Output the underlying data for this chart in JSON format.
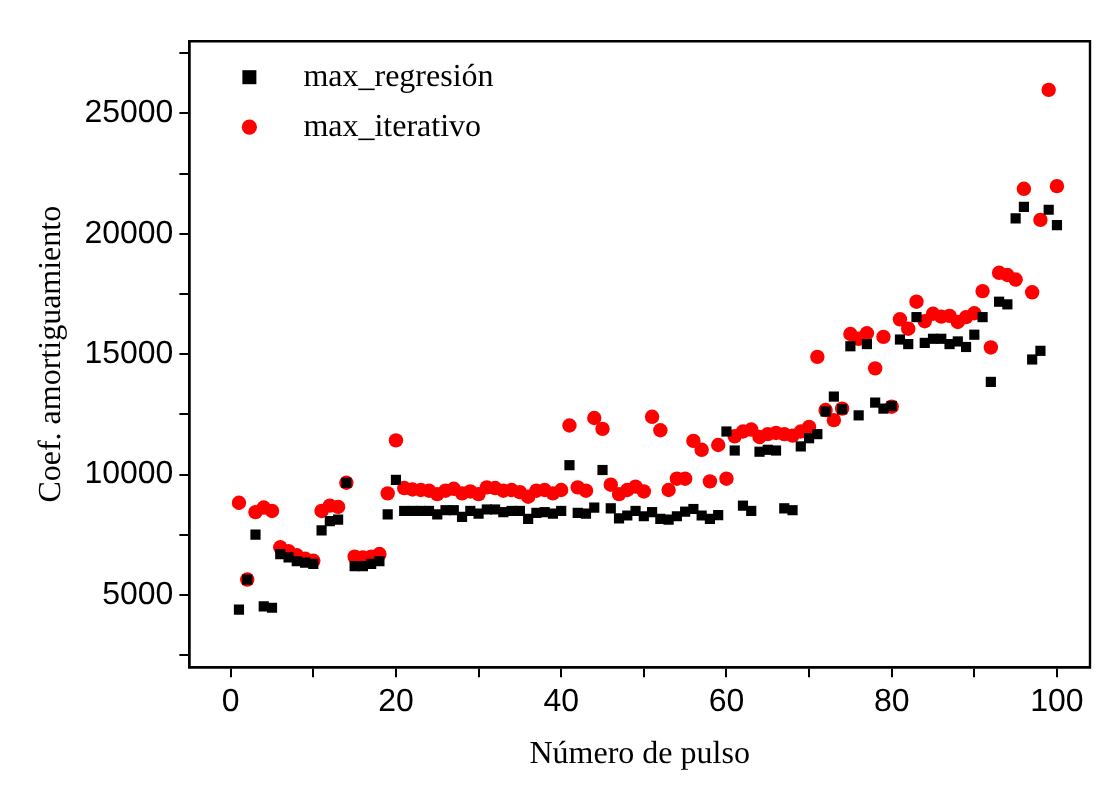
{
  "chart_data": {
    "type": "scatter",
    "xlabel": "Número de pulso",
    "ylabel": "Coef. amortiguamiento",
    "x": [
      1,
      2,
      3,
      4,
      5,
      6,
      7,
      8,
      9,
      10,
      11,
      12,
      13,
      14,
      15,
      16,
      17,
      18,
      19,
      20,
      21,
      22,
      23,
      24,
      25,
      26,
      27,
      28,
      29,
      30,
      31,
      32,
      33,
      34,
      35,
      36,
      37,
      38,
      39,
      40,
      41,
      42,
      43,
      44,
      45,
      46,
      47,
      48,
      49,
      50,
      51,
      52,
      53,
      54,
      55,
      56,
      57,
      58,
      59,
      60,
      61,
      62,
      63,
      64,
      65,
      66,
      67,
      68,
      69,
      70,
      71,
      72,
      73,
      74,
      75,
      76,
      77,
      78,
      79,
      80,
      81,
      82,
      83,
      84,
      85,
      86,
      87,
      88,
      89,
      90,
      91,
      92,
      93,
      94,
      95,
      96,
      97,
      98,
      99,
      100
    ],
    "series": [
      {
        "name": "max_regresión",
        "color": "#000000",
        "marker": "square",
        "values": [
          4390,
          5640,
          7510,
          4530,
          4470,
          6700,
          6560,
          6400,
          6340,
          6290,
          7680,
          8070,
          8130,
          9660,
          6200,
          6200,
          6290,
          6400,
          8350,
          9780,
          8490,
          8490,
          8490,
          8490,
          8350,
          8520,
          8520,
          8240,
          8490,
          8380,
          8550,
          8550,
          8440,
          8490,
          8490,
          8160,
          8410,
          8440,
          8380,
          8490,
          10390,
          8410,
          8380,
          8630,
          10190,
          8600,
          8180,
          8300,
          8490,
          8270,
          8440,
          8160,
          8130,
          8270,
          8460,
          8570,
          8300,
          8160,
          8320,
          11790,
          11000,
          8710,
          8490,
          10950,
          11030,
          11000,
          8600,
          8520,
          11170,
          11510,
          11680,
          12620,
          13240,
          12710,
          15330,
          12460,
          15420,
          12990,
          12740,
          12850,
          15610,
          15420,
          16540,
          15470,
          15640,
          15640,
          15420,
          15530,
          15300,
          15810,
          16540,
          13850,
          17180,
          17070,
          20640,
          21120,
          14780,
          15140,
          21000,
          20360
        ]
      },
      {
        "name": "max_iterativo",
        "color": "#ff0000",
        "marker": "circle",
        "values": [
          8830,
          5640,
          8440,
          8630,
          8490,
          6980,
          6820,
          6650,
          6510,
          6420,
          8490,
          8710,
          8660,
          9660,
          6590,
          6560,
          6590,
          6700,
          9220,
          11420,
          9440,
          9380,
          9360,
          9330,
          9190,
          9330,
          9410,
          9220,
          9300,
          9190,
          9470,
          9440,
          9330,
          9360,
          9270,
          9080,
          9330,
          9360,
          9220,
          9360,
          12040,
          9470,
          9330,
          12350,
          11900,
          9580,
          9190,
          9360,
          9500,
          9300,
          12400,
          11840,
          9360,
          9830,
          9830,
          11400,
          11030,
          9720,
          11230,
          9830,
          11590,
          11790,
          11870,
          11560,
          11680,
          11730,
          11680,
          11620,
          11790,
          11980,
          14890,
          12680,
          12260,
          12740,
          15840,
          15640,
          15870,
          14410,
          15720,
          12820,
          16450,
          16060,
          17180,
          16370,
          16680,
          16560,
          16590,
          16340,
          16540,
          16700,
          17620,
          15280,
          18380,
          18290,
          18100,
          21870,
          17570,
          20580,
          25980,
          21980
        ]
      }
    ],
    "xlim": [
      -5,
      104
    ],
    "xticks": [
      0,
      {
        "value": 10,
        "label": null
      },
      20,
      {
        "value": 30,
        "label": null
      },
      40,
      {
        "value": 50,
        "label": null
      },
      60,
      {
        "value": 70,
        "label": null
      },
      80,
      {
        "value": 90,
        "label": null
      },
      100
    ],
    "ylim": [
      2000,
      28000
    ],
    "yticks": [
      {
        "value": 2500,
        "label": null
      },
      5000,
      {
        "value": 7500,
        "label": null
      },
      10000,
      {
        "value": 12500,
        "label": null
      },
      15000,
      {
        "value": 17500,
        "label": null
      },
      20000,
      {
        "value": 22500,
        "label": null
      },
      25000,
      {
        "value": 27500,
        "label": null
      }
    ],
    "grid": false,
    "legend": "top left"
  }
}
